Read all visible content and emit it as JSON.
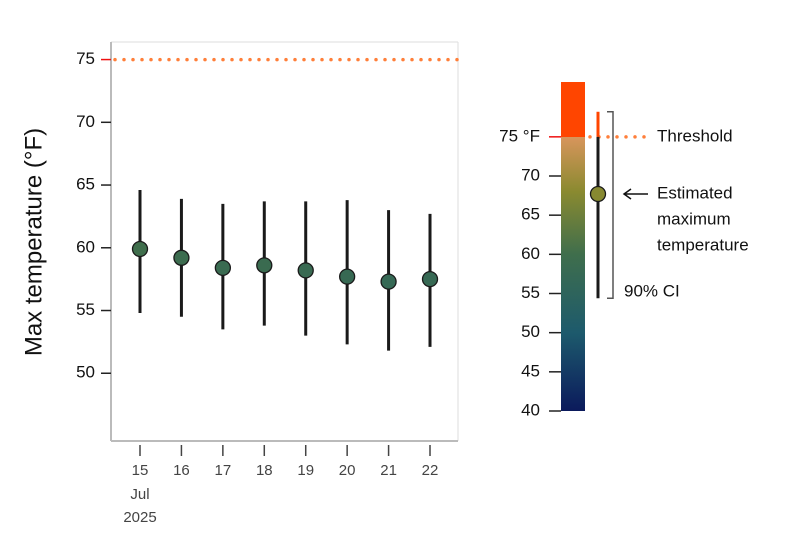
{
  "chart_data": {
    "type": "errorbar",
    "y_label": "Max temperature (°F)",
    "categories": [
      "15",
      "16",
      "17",
      "18",
      "19",
      "20",
      "21",
      "22"
    ],
    "x_month": "Jul",
    "x_year": "2025",
    "values": [
      59.9,
      59.2,
      58.4,
      58.6,
      58.2,
      57.7,
      57.3,
      57.5
    ],
    "lower": [
      54.8,
      54.5,
      53.5,
      53.8,
      53.0,
      52.3,
      51.8,
      52.1
    ],
    "upper": [
      64.6,
      63.9,
      63.5,
      63.7,
      63.7,
      63.8,
      63.0,
      62.7
    ],
    "threshold": 75,
    "threshold_color": "#ff7f3a",
    "threshold_text_color": "#ee1111",
    "ylim": [
      44.6,
      76.4
    ],
    "yticks": [
      50,
      55,
      60,
      65,
      70,
      75
    ],
    "colormap": [
      {
        "value": 40,
        "color": "#0b1a5c"
      },
      {
        "value": 50,
        "color": "#1d5a6c"
      },
      {
        "value": 60,
        "color": "#3f6e4c"
      },
      {
        "value": 68,
        "color": "#8a8a30"
      },
      {
        "value": 75,
        "color": "#d8955c"
      },
      {
        "value": 75.01,
        "color": "#ff4500"
      },
      {
        "value": 82,
        "color": "#ff4500"
      }
    ],
    "legend": {
      "ylim": [
        40,
        82
      ],
      "yticks": [
        40,
        45,
        50,
        55,
        60,
        65,
        70
      ],
      "threshold_label": "75 °F",
      "threshold_text": "Threshold",
      "example_value": 67.7,
      "example_lower": 54.4,
      "example_upper": 78.2,
      "estimate_text": [
        "Estimated",
        "maximum",
        "temperature"
      ],
      "ci_text": "90% CI"
    }
  }
}
